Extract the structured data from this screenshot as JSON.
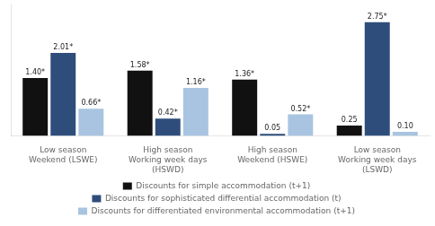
{
  "chart_data": {
    "type": "bar",
    "categories": [
      "Low season\nWeekend (LSWE)",
      "High season\nWorking week days\n(HSWD)",
      "High season\nWeekend (HSWE)",
      "Low season\nWorking week days\n(LSWD)"
    ],
    "series": [
      {
        "name": "Discounts for simple accommodation (t+1)",
        "color": "#111111",
        "values": [
          1.4,
          1.58,
          1.36,
          0.25
        ],
        "value_labels": [
          "1.40*",
          "1.58*",
          "1.36*",
          "0.25"
        ]
      },
      {
        "name": "Discounts for sophisticated differential accommodation (t)",
        "color": "#2e4d7b",
        "values": [
          2.01,
          0.42,
          0.05,
          2.75
        ],
        "value_labels": [
          "2.01*",
          "0.42*",
          "0.05",
          "2.75*"
        ]
      },
      {
        "name": "Discounts for differentiated environmental accommodation (t+1)",
        "color": "#a8c4e0",
        "values": [
          0.66,
          1.16,
          0.52,
          0.1
        ],
        "value_labels": [
          "0.66*",
          "1.16*",
          "0.52*",
          "0.10"
        ]
      }
    ],
    "ylim": [
      0,
      3.2
    ],
    "grid": false,
    "legend": "bottom",
    "data_labels": true,
    "tick_labels": "x"
  }
}
